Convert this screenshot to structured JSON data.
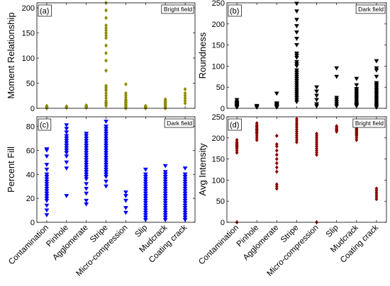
{
  "chart_data": [
    {
      "type": "scatter",
      "panel_label": "(a)",
      "badge": "Bright field",
      "ylabel": "Moment Relationship",
      "ylim": [
        0,
        210
      ],
      "yticks": [
        0,
        50,
        100,
        150,
        200
      ],
      "marker": "diamond",
      "color": "#8b8b00",
      "categories": [
        "Contamination",
        "Pinhole",
        "Agglomerate",
        "Stripe",
        "Micro-compression",
        "Slip",
        "Mudcrack",
        "Coating crack"
      ],
      "values": [
        [
          0,
          1,
          2,
          3,
          4,
          5
        ],
        [
          1,
          2,
          3,
          4
        ],
        [
          1,
          2,
          3,
          5,
          6
        ],
        [
          5,
          8,
          10,
          12,
          15,
          20,
          25,
          30,
          35,
          38,
          42,
          45,
          75,
          95,
          110,
          125,
          140,
          145,
          150,
          155,
          160,
          165,
          180,
          195,
          210
        ],
        [
          0,
          2,
          4,
          6,
          8,
          10,
          12,
          14,
          16,
          18,
          22,
          26,
          30,
          48
        ],
        [
          0,
          1,
          2,
          3,
          4,
          5
        ],
        [
          0,
          2,
          4,
          6,
          8,
          10,
          12,
          14,
          16,
          18
        ],
        [
          10,
          15,
          20,
          25,
          30,
          38
        ]
      ]
    },
    {
      "type": "scatter",
      "panel_label": "(b)",
      "badge": "Dark field",
      "ylabel": "Roundness",
      "ylim": [
        0,
        250
      ],
      "yticks": [
        0,
        50,
        100,
        150,
        200,
        250
      ],
      "marker": "triangle-down",
      "color": "#000000",
      "categories": [
        "Contamination",
        "Pinhole",
        "Agglomerate",
        "Stripe",
        "Micro-compression",
        "Slip",
        "Mudcrack",
        "Coating crack"
      ],
      "values": [
        [
          2,
          4,
          6,
          8,
          10,
          12,
          15,
          20
        ],
        [
          2,
          4,
          6
        ],
        [
          2,
          4,
          6,
          8,
          10,
          12,
          35
        ],
        [
          15,
          20,
          25,
          30,
          35,
          40,
          45,
          50,
          55,
          60,
          65,
          70,
          75,
          80,
          85,
          90,
          100,
          105,
          110,
          120,
          125,
          130,
          150,
          165,
          180,
          195,
          210,
          230,
          248
        ],
        [
          5,
          10,
          20,
          30,
          40,
          50
        ],
        [
          5,
          10,
          15,
          20,
          25,
          75,
          95
        ],
        [
          5,
          8,
          10,
          14,
          18,
          22,
          26,
          30,
          34,
          38,
          42,
          46,
          55,
          70
        ],
        [
          2,
          5,
          8,
          12,
          16,
          20,
          24,
          28,
          32,
          36,
          40,
          44,
          48,
          52,
          56,
          60,
          75,
          90,
          95,
          112
        ]
      ]
    },
    {
      "type": "scatter",
      "panel_label": "(c)",
      "badge": "Dark field",
      "ylabel": "Percent Fill",
      "ylim": [
        0,
        88
      ],
      "yticks": [
        0,
        20,
        40,
        60,
        80
      ],
      "marker": "triangle-down",
      "color": "#0000ff",
      "categories": [
        "Contamination",
        "Pinhole",
        "Agglomerate",
        "Stripe",
        "Micro-compression",
        "Slip",
        "Mudcrack",
        "Coating crack"
      ],
      "values": [
        [
          6,
          10,
          14,
          18,
          20,
          22,
          24,
          26,
          28,
          30,
          32,
          34,
          36,
          38,
          40,
          44,
          48,
          55,
          60,
          61
        ],
        [
          22,
          45,
          50,
          55,
          58,
          60,
          62,
          64,
          66,
          68,
          70,
          72,
          75,
          78,
          81
        ],
        [
          15,
          18,
          24,
          28,
          32,
          36,
          38,
          40,
          42,
          44,
          46,
          48,
          50,
          52,
          54,
          56,
          58,
          60,
          62,
          64,
          66,
          68,
          70,
          72,
          74
        ],
        [
          30,
          34,
          38,
          40,
          42,
          44,
          46,
          48,
          50,
          52,
          54,
          56,
          58,
          60,
          62,
          64,
          66,
          68,
          70,
          72,
          74,
          76,
          78,
          80,
          84
        ],
        [
          8,
          12,
          18,
          22,
          25
        ],
        [
          2,
          4,
          6,
          8,
          10,
          12,
          14,
          16,
          18,
          20,
          22,
          24,
          26,
          28,
          30,
          32,
          34,
          36,
          38,
          40,
          44
        ],
        [
          2,
          4,
          6,
          8,
          10,
          12,
          14,
          16,
          18,
          20,
          22,
          24,
          26,
          28,
          30,
          32,
          34,
          36,
          38,
          40,
          42,
          47
        ],
        [
          2,
          4,
          6,
          8,
          10,
          12,
          14,
          16,
          18,
          20,
          22,
          24,
          26,
          28,
          30,
          32,
          34,
          36,
          38,
          40,
          45
        ]
      ]
    },
    {
      "type": "scatter",
      "panel_label": "(d)",
      "badge": "Bright field",
      "ylabel": "Avg Intensity",
      "ylim": [
        0,
        250
      ],
      "yticks": [
        0,
        50,
        100,
        150,
        200,
        250
      ],
      "marker": "diamond",
      "color": "#8b0000",
      "categories": [
        "Contamination",
        "Pinhole",
        "Agglomerate",
        "Stripe",
        "Micro-compression",
        "Slip",
        "Mudcrack",
        "Coating crack"
      ],
      "values": [
        [
          0,
          165,
          170,
          175,
          178,
          180,
          182,
          185,
          188,
          190,
          195
        ],
        [
          195,
          200,
          205,
          210,
          212,
          215,
          218,
          220,
          222,
          225,
          228,
          230,
          235
        ],
        [
          80,
          85,
          90,
          120,
          130,
          140,
          150,
          160,
          170,
          180,
          185,
          205
        ],
        [
          190,
          195,
          200,
          205,
          210,
          215,
          220,
          225,
          230,
          235,
          240,
          245
        ],
        [
          0,
          160,
          165,
          170,
          175,
          180,
          185,
          190,
          195,
          200,
          205,
          210
        ],
        [
          215,
          218,
          220,
          222,
          225,
          228
        ],
        [
          195,
          200,
          205,
          208,
          210,
          212,
          215,
          218,
          220,
          222,
          225,
          228
        ],
        [
          55,
          60,
          65,
          70,
          75,
          80
        ]
      ]
    }
  ]
}
